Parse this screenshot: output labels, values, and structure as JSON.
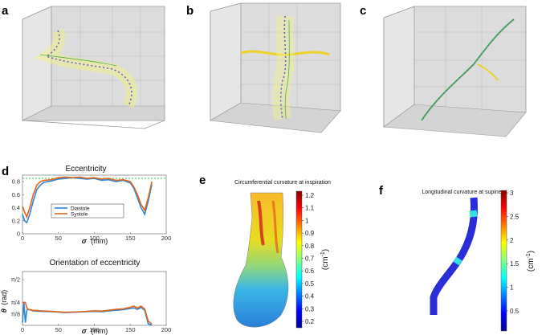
{
  "panels": {
    "a": "a",
    "b": "b",
    "c": "c",
    "d": "d",
    "e": "e",
    "f": "f"
  },
  "legend": {
    "diastole": "Diastole",
    "systole": "Systole"
  },
  "colors": {
    "diastole": "#2e86d4",
    "systole": "#e1651b",
    "threshold": "#39c439"
  },
  "panel_e": {
    "title": "Circumferential curvature at inspiration",
    "unit": "(cm",
    "unit_sup": "-1",
    "unit_close": ")",
    "ticks": [
      "1.2",
      "1.1",
      "1",
      "0.9",
      "0.8",
      "0.7",
      "0.6",
      "0.5",
      "0.4",
      "0.3",
      "0.2"
    ]
  },
  "panel_f": {
    "title": "Longitudinal curvature at supine",
    "unit": "(cm",
    "unit_sup": "-1",
    "unit_close": ")",
    "ticks": [
      "3",
      "2.5",
      "2",
      "1.5",
      "1",
      "0.5"
    ]
  },
  "chart_data": [
    {
      "type": "line",
      "title": "Eccentricity",
      "xlabel": "σ",
      "xlabel_unit": "(mm)",
      "ylabel": "",
      "xlim": [
        0,
        200
      ],
      "ylim": [
        0,
        0.9
      ],
      "xticks": [
        0,
        50,
        100,
        150,
        200
      ],
      "yticks": [
        "0",
        "0.2",
        "0.4",
        "0.6",
        "0.8"
      ],
      "threshold": 0.85,
      "series": [
        {
          "name": "Diastole",
          "x": [
            0,
            3,
            6,
            10,
            15,
            20,
            25,
            30,
            40,
            50,
            60,
            70,
            80,
            90,
            100,
            110,
            120,
            130,
            140,
            150,
            155,
            160,
            165,
            170,
            175,
            180
          ],
          "y": [
            0.3,
            0.2,
            0.17,
            0.3,
            0.5,
            0.68,
            0.75,
            0.79,
            0.81,
            0.84,
            0.85,
            0.86,
            0.85,
            0.84,
            0.85,
            0.82,
            0.83,
            0.8,
            0.82,
            0.78,
            0.7,
            0.55,
            0.4,
            0.3,
            0.5,
            0.76
          ]
        },
        {
          "name": "Systole",
          "x": [
            0,
            3,
            6,
            10,
            15,
            20,
            25,
            30,
            40,
            50,
            60,
            70,
            80,
            90,
            100,
            110,
            120,
            130,
            140,
            150,
            155,
            160,
            165,
            170,
            175,
            180
          ],
          "y": [
            0.42,
            0.33,
            0.26,
            0.4,
            0.6,
            0.75,
            0.8,
            0.82,
            0.83,
            0.86,
            0.87,
            0.86,
            0.87,
            0.85,
            0.86,
            0.84,
            0.85,
            0.82,
            0.83,
            0.8,
            0.72,
            0.6,
            0.45,
            0.36,
            0.55,
            0.8
          ]
        }
      ]
    },
    {
      "type": "line",
      "title": "Orientation of eccentricity",
      "xlabel": "σ",
      "xlabel_unit": "(mm)",
      "ylabel": "θ",
      "ylabel_unit": "(rad)",
      "xlim": [
        0,
        200
      ],
      "ylim": [
        0,
        1.85
      ],
      "xticks": [
        0,
        50,
        100,
        150,
        200
      ],
      "yticks": [
        {
          "label": "π/2",
          "value": 1.5708
        },
        {
          "label": "π/4",
          "value": 0.7854
        },
        {
          "label": "π/8",
          "value": 0.3927
        }
      ],
      "series": [
        {
          "name": "Diastole",
          "x": [
            0,
            2,
            4,
            6,
            8,
            15,
            25,
            40,
            60,
            80,
            100,
            110,
            120,
            130,
            140,
            150,
            155,
            160,
            165,
            170,
            175,
            180
          ],
          "y": [
            0.1,
            0.79,
            0.1,
            0.52,
            0.55,
            0.5,
            0.48,
            0.47,
            0.44,
            0.46,
            0.48,
            0.47,
            0.5,
            0.52,
            0.54,
            0.58,
            0.6,
            0.55,
            0.62,
            0.52,
            0.05,
            0.02
          ]
        },
        {
          "name": "Systole",
          "x": [
            0,
            2,
            4,
            6,
            8,
            15,
            25,
            40,
            60,
            80,
            100,
            110,
            120,
            130,
            140,
            150,
            155,
            160,
            165,
            170,
            175,
            180
          ],
          "y": [
            0.79,
            0.79,
            0.79,
            0.6,
            0.55,
            0.52,
            0.5,
            0.48,
            0.45,
            0.47,
            0.5,
            0.49,
            0.52,
            0.55,
            0.57,
            0.62,
            0.66,
            0.6,
            0.66,
            0.56,
            0.15,
            0.05
          ]
        }
      ]
    }
  ]
}
